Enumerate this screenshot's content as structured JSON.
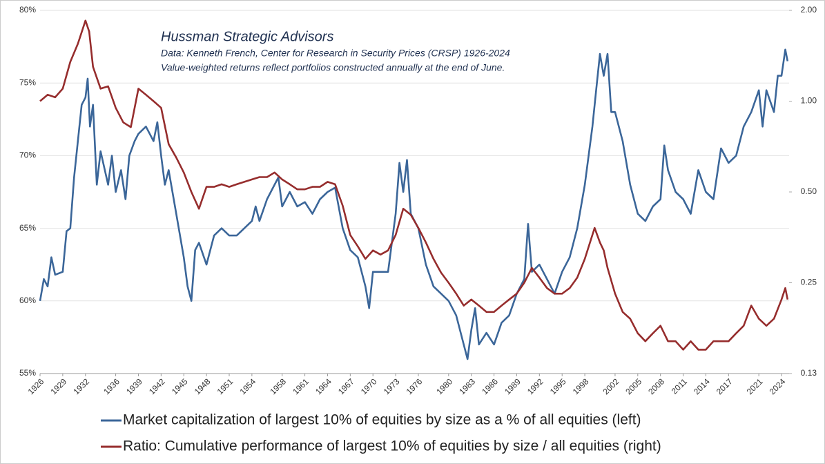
{
  "chart_data": {
    "type": "line",
    "title": "Hussman Strategic Advisors",
    "annotations": [
      "Data: Kenneth French, Center for Research in Security Prices (CRSP) 1926-2024",
      "Value-weighted returns reflect portfolios constructed annually at the end of June."
    ],
    "xlim": [
      1926,
      2025
    ],
    "xticks": [
      1926,
      1929,
      1932,
      1936,
      1939,
      1942,
      1945,
      1948,
      1951,
      1954,
      1958,
      1961,
      1964,
      1967,
      1970,
      1973,
      1976,
      1980,
      1983,
      1986,
      1989,
      1992,
      1995,
      1998,
      2002,
      2005,
      2008,
      2011,
      2014,
      2017,
      2021,
      2024
    ],
    "ylim": [
      55,
      80
    ],
    "yticks": [
      {
        "value": 55,
        "label": "55%"
      },
      {
        "value": 60,
        "label": "60%"
      },
      {
        "value": 65,
        "label": "65%"
      },
      {
        "value": 70,
        "label": "70%"
      },
      {
        "value": 75,
        "label": "75%"
      },
      {
        "value": 80,
        "label": "80%"
      }
    ],
    "y2lim": [
      0.125,
      2
    ],
    "y2log": true,
    "y2ticks": [
      {
        "value": 0.125,
        "label": "0.13"
      },
      {
        "value": 0.25,
        "label": "0.25"
      },
      {
        "value": 0.5,
        "label": "0.50"
      },
      {
        "value": 1,
        "label": "1.00"
      },
      {
        "value": 2,
        "label": "2.00"
      }
    ],
    "grid": true,
    "legend": "bottom",
    "series": [
      {
        "name": "Market capitalization of largest 10% of equities by size as a % of all equities (left)",
        "color": "#3b6699",
        "axis": "y",
        "x": [
          1926,
          1926.5,
          1927,
          1927.5,
          1928,
          1929,
          1929.5,
          1930,
          1930.5,
          1931,
          1931.5,
          1932,
          1932.3,
          1932.6,
          1933,
          1933.5,
          1934,
          1935,
          1935.5,
          1936,
          1936.7,
          1937.3,
          1937.8,
          1938.5,
          1939,
          1940,
          1941,
          1941.5,
          1942,
          1942.5,
          1943,
          1944,
          1945,
          1945.5,
          1946,
          1946.5,
          1947,
          1948,
          1949,
          1950,
          1951,
          1952,
          1953,
          1954,
          1954.5,
          1955,
          1956,
          1957,
          1957.5,
          1958,
          1959,
          1960,
          1961,
          1962,
          1963,
          1964,
          1965,
          1966,
          1967,
          1968,
          1969,
          1969.5,
          1970,
          1971,
          1972,
          1973,
          1973.5,
          1974,
          1974.5,
          1975,
          1976,
          1977,
          1978,
          1979,
          1980,
          1981,
          1982,
          1982.5,
          1983,
          1983.5,
          1984,
          1985,
          1986,
          1987,
          1988,
          1989,
          1990,
          1990.5,
          1991,
          1992,
          1993,
          1994,
          1995,
          1996,
          1997,
          1998,
          1999,
          1999.5,
          2000,
          2000.5,
          2001,
          2001.5,
          2002,
          2003,
          2004,
          2005,
          2006,
          2007,
          2008,
          2008.5,
          2009,
          2010,
          2011,
          2012,
          2013,
          2014,
          2015,
          2016,
          2017,
          2018,
          2019,
          2020,
          2021,
          2021.5,
          2022,
          2023,
          2023.5,
          2024,
          2024.5,
          2024.8
        ],
        "values": [
          60.0,
          61.5,
          61.0,
          63.0,
          61.8,
          62.0,
          64.8,
          65.0,
          68.5,
          71.0,
          73.5,
          74.0,
          75.3,
          72.0,
          73.5,
          68.0,
          70.3,
          68.0,
          70.0,
          67.5,
          69.0,
          67.0,
          70.0,
          71.0,
          71.5,
          72.0,
          71.0,
          72.3,
          70.0,
          68.0,
          69.0,
          66.0,
          63.0,
          61.0,
          60.0,
          63.5,
          64.0,
          62.5,
          64.5,
          65.0,
          64.5,
          64.5,
          65.0,
          65.5,
          66.5,
          65.5,
          67.0,
          68.0,
          68.5,
          66.5,
          67.5,
          66.5,
          66.8,
          66.0,
          67.0,
          67.5,
          67.8,
          65.0,
          63.5,
          63.0,
          61.0,
          59.5,
          62.0,
          62.0,
          62.0,
          66.0,
          69.5,
          67.5,
          69.7,
          66.0,
          65.0,
          62.5,
          61.0,
          60.5,
          60.0,
          59.0,
          57.0,
          56.0,
          58.0,
          59.5,
          57.0,
          57.8,
          57.0,
          58.5,
          59.0,
          60.5,
          61.5,
          65.3,
          62.0,
          62.5,
          61.5,
          60.5,
          62.0,
          63.0,
          65.0,
          68.0,
          72.0,
          74.5,
          77.0,
          75.5,
          77.0,
          73.0,
          73.0,
          71.0,
          68.0,
          66.0,
          65.5,
          66.5,
          67.0,
          70.7,
          69.0,
          67.5,
          67.0,
          66.0,
          69.0,
          67.5,
          67.0,
          70.5,
          69.5,
          70.0,
          72.0,
          73.0,
          74.5,
          72.0,
          74.5,
          73.0,
          75.5,
          75.5,
          77.3,
          76.5
        ]
      },
      {
        "name": "Ratio: Cumulative performance of largest 10% of equities by size / all equities (right)",
        "color": "#962d2d",
        "axis": "y2",
        "x": [
          1926,
          1927,
          1928,
          1929,
          1930,
          1931,
          1932,
          1932.5,
          1933,
          1934,
          1935,
          1936,
          1937,
          1938,
          1938.5,
          1939,
          1940,
          1941,
          1942,
          1943,
          1944,
          1945,
          1946,
          1947,
          1948,
          1949,
          1950,
          1951,
          1952,
          1953,
          1954,
          1955,
          1956,
          1957,
          1958,
          1959,
          1960,
          1961,
          1962,
          1963,
          1964,
          1965,
          1966,
          1967,
          1968,
          1969,
          1970,
          1971,
          1972,
          1973,
          1974,
          1975,
          1976,
          1977,
          1978,
          1979,
          1980,
          1981,
          1982,
          1983,
          1984,
          1985,
          1986,
          1987,
          1988,
          1989,
          1990,
          1991,
          1992,
          1993,
          1994,
          1995,
          1996,
          1997,
          1998,
          1999.3,
          2000,
          2000.5,
          2001,
          2002,
          2003,
          2004,
          2005,
          2006,
          2007,
          2008,
          2009,
          2010,
          2011,
          2012,
          2013,
          2014,
          2015,
          2016,
          2017,
          2018,
          2019,
          2020,
          2021,
          2022,
          2023,
          2024,
          2024.5,
          2024.8
        ],
        "values": [
          1.0,
          1.05,
          1.03,
          1.1,
          1.35,
          1.55,
          1.85,
          1.7,
          1.3,
          1.1,
          1.12,
          0.95,
          0.85,
          0.82,
          0.95,
          1.1,
          1.05,
          1.0,
          0.95,
          0.72,
          0.65,
          0.58,
          0.5,
          0.44,
          0.52,
          0.52,
          0.53,
          0.52,
          0.53,
          0.54,
          0.55,
          0.56,
          0.56,
          0.58,
          0.55,
          0.53,
          0.51,
          0.51,
          0.52,
          0.52,
          0.54,
          0.53,
          0.45,
          0.36,
          0.33,
          0.3,
          0.32,
          0.31,
          0.32,
          0.36,
          0.44,
          0.42,
          0.38,
          0.34,
          0.3,
          0.27,
          0.25,
          0.23,
          0.21,
          0.22,
          0.21,
          0.2,
          0.2,
          0.21,
          0.22,
          0.23,
          0.25,
          0.28,
          0.26,
          0.24,
          0.23,
          0.23,
          0.24,
          0.26,
          0.3,
          0.38,
          0.34,
          0.32,
          0.28,
          0.23,
          0.2,
          0.19,
          0.17,
          0.16,
          0.17,
          0.18,
          0.16,
          0.16,
          0.15,
          0.16,
          0.15,
          0.15,
          0.16,
          0.16,
          0.16,
          0.17,
          0.18,
          0.21,
          0.19,
          0.18,
          0.19,
          0.22,
          0.24,
          0.22
        ]
      }
    ]
  }
}
